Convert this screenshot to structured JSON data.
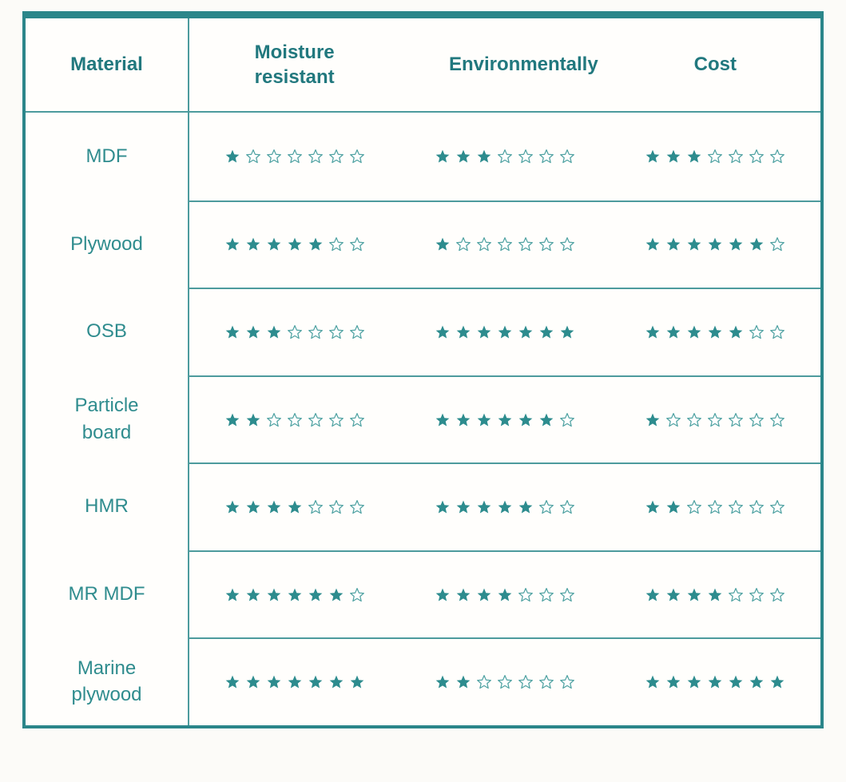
{
  "colors": {
    "accent": "#2d8c8e",
    "border": "#2b868a",
    "header_text": "#21787e",
    "label_text": "#2f8c8e",
    "star_filled": "#2d8c8e",
    "star_empty_outline": "#4fa2a2",
    "background": "#fcfbf8"
  },
  "icons": {
    "star_filled": "★",
    "star_empty": "☆"
  },
  "table": {
    "columns": [
      "Material",
      "Moisture resistant",
      "Environmentally",
      "Cost"
    ],
    "max_stars": 7,
    "rows": [
      {
        "material": "MDF",
        "moisture_resistant": 1,
        "environmentally": 3,
        "cost": 3
      },
      {
        "material": "Plywood",
        "moisture_resistant": 5,
        "environmentally": 1,
        "cost": 6
      },
      {
        "material": "OSB",
        "moisture_resistant": 3,
        "environmentally": 7,
        "cost": 5
      },
      {
        "material": "Particle board",
        "moisture_resistant": 2,
        "environmentally": 6,
        "cost": 1
      },
      {
        "material": "HMR",
        "moisture_resistant": 4,
        "environmentally": 5,
        "cost": 2
      },
      {
        "material": "MR MDF",
        "moisture_resistant": 6,
        "environmentally": 4,
        "cost": 4
      },
      {
        "material": "Marine plywood",
        "moisture_resistant": 7,
        "environmentally": 2,
        "cost": 7
      }
    ]
  },
  "chart_data": {
    "type": "table",
    "categories": [
      "MDF",
      "Plywood",
      "OSB",
      "Particle board",
      "HMR",
      "MR MDF",
      "Marine plywood"
    ],
    "series": [
      {
        "name": "Moisture resistant",
        "values": [
          1,
          5,
          3,
          2,
          4,
          6,
          7
        ]
      },
      {
        "name": "Environmentally",
        "values": [
          3,
          1,
          7,
          6,
          5,
          4,
          2
        ]
      },
      {
        "name": "Cost",
        "values": [
          3,
          6,
          5,
          1,
          2,
          4,
          7
        ]
      }
    ],
    "scale_max": 7,
    "unit": "stars",
    "legend_position": "none",
    "title": ""
  }
}
